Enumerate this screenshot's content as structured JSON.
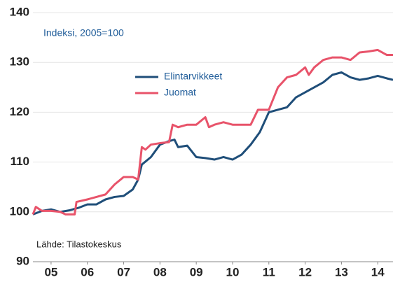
{
  "chart_data": {
    "type": "line",
    "annotations": [
      "Indeksi, 2005=100",
      "Lähde: Tilastokeskus"
    ],
    "xlim": [
      2005,
      2014.92
    ],
    "xticks": [
      {
        "value": 2005.5,
        "label": "05"
      },
      {
        "value": 2006.5,
        "label": "06"
      },
      {
        "value": 2007.5,
        "label": "07"
      },
      {
        "value": 2008.5,
        "label": "08"
      },
      {
        "value": 2009.5,
        "label": "09"
      },
      {
        "value": 2010.5,
        "label": "10"
      },
      {
        "value": 2011.5,
        "label": "11"
      },
      {
        "value": 2012.5,
        "label": "12"
      },
      {
        "value": 2013.5,
        "label": "13"
      },
      {
        "value": 2014.5,
        "label": "14"
      }
    ],
    "ylim": [
      90,
      140
    ],
    "yticks": [
      90,
      100,
      110,
      120,
      130,
      140
    ],
    "grid": true,
    "series": [
      {
        "name": "Elintarvikkeet",
        "color": "#1f4e79",
        "x": [
          2005.0,
          2005.25,
          2005.5,
          2005.75,
          2006.0,
          2006.25,
          2006.5,
          2006.75,
          2007.0,
          2007.25,
          2007.5,
          2007.75,
          2007.9,
          2008.0,
          2008.25,
          2008.5,
          2008.75,
          2008.9,
          2009.0,
          2009.25,
          2009.5,
          2009.75,
          2010.0,
          2010.25,
          2010.5,
          2010.75,
          2011.0,
          2011.25,
          2011.5,
          2011.75,
          2012.0,
          2012.25,
          2012.5,
          2012.75,
          2013.0,
          2013.25,
          2013.5,
          2013.75,
          2014.0,
          2014.25,
          2014.5,
          2014.75,
          2014.92
        ],
        "values": [
          99.5,
          100.2,
          100.5,
          100,
          100.3,
          100.8,
          101.5,
          101.5,
          102.5,
          103,
          103.2,
          104.5,
          106.5,
          109.5,
          111,
          113.5,
          114.2,
          114.5,
          113,
          113.3,
          111,
          110.8,
          110.5,
          111,
          110.5,
          111.5,
          113.5,
          116,
          120,
          120.5,
          121,
          123,
          124,
          125,
          126,
          127.5,
          128,
          127,
          126.5,
          126.8,
          127.3,
          126.8,
          126.5
        ]
      },
      {
        "name": "Juomat",
        "color": "#e8536a",
        "x": [
          2005.0,
          2005.08,
          2005.25,
          2005.5,
          2005.75,
          2005.9,
          2006.15,
          2006.2,
          2006.5,
          2006.75,
          2007.0,
          2007.25,
          2007.5,
          2007.75,
          2007.9,
          2008.0,
          2008.1,
          2008.25,
          2008.5,
          2008.75,
          2008.85,
          2009.0,
          2009.25,
          2009.5,
          2009.75,
          2009.85,
          2010.0,
          2010.25,
          2010.5,
          2010.75,
          2011.0,
          2011.2,
          2011.5,
          2011.75,
          2012.0,
          2012.25,
          2012.5,
          2012.6,
          2012.75,
          2013.0,
          2013.25,
          2013.5,
          2013.75,
          2014.0,
          2014.25,
          2014.5,
          2014.75,
          2014.92
        ],
        "values": [
          99.5,
          101,
          100.2,
          100.2,
          100,
          99.5,
          99.5,
          102,
          102.5,
          103,
          103.5,
          105.5,
          107,
          107,
          106.5,
          113,
          112.5,
          113.5,
          113.8,
          114,
          117.5,
          117,
          117.5,
          117.5,
          119,
          117,
          117.5,
          118,
          117.5,
          117.5,
          117.5,
          120.5,
          120.5,
          125,
          127,
          127.5,
          129,
          127.5,
          129,
          130.5,
          131,
          131,
          130.5,
          132,
          132.2,
          132.5,
          131.5,
          131.5
        ]
      }
    ]
  }
}
